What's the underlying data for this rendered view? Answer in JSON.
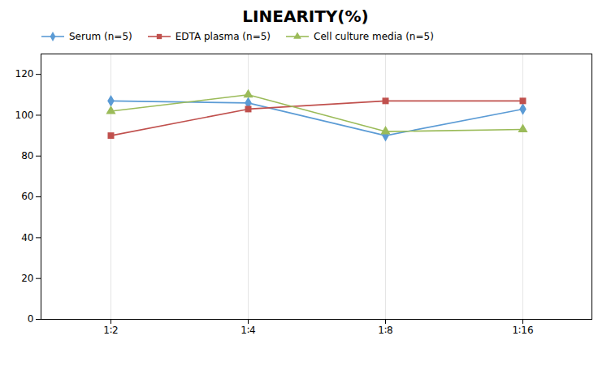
{
  "chart_data": {
    "type": "line",
    "title": "LINEARITY(%)",
    "categories": [
      "1∶2",
      "1∶4",
      "1∶8",
      "1∶16"
    ],
    "series": [
      {
        "name": "Serum (n=5)",
        "color": "#5B9BD5",
        "marker": "diamond",
        "values": [
          107,
          106,
          90,
          103
        ]
      },
      {
        "name": "EDTA plasma (n=5)",
        "color": "#C0504D",
        "marker": "square",
        "values": [
          90,
          103,
          107,
          107
        ]
      },
      {
        "name": "Cell culture media (n=5)",
        "color": "#9BBB59",
        "marker": "triangle",
        "values": [
          102,
          110,
          92,
          93
        ]
      }
    ],
    "ylim": [
      0,
      130
    ],
    "yticks": [
      0,
      20,
      40,
      60,
      80,
      100,
      120
    ],
    "grid": "x",
    "legend": "top left"
  }
}
